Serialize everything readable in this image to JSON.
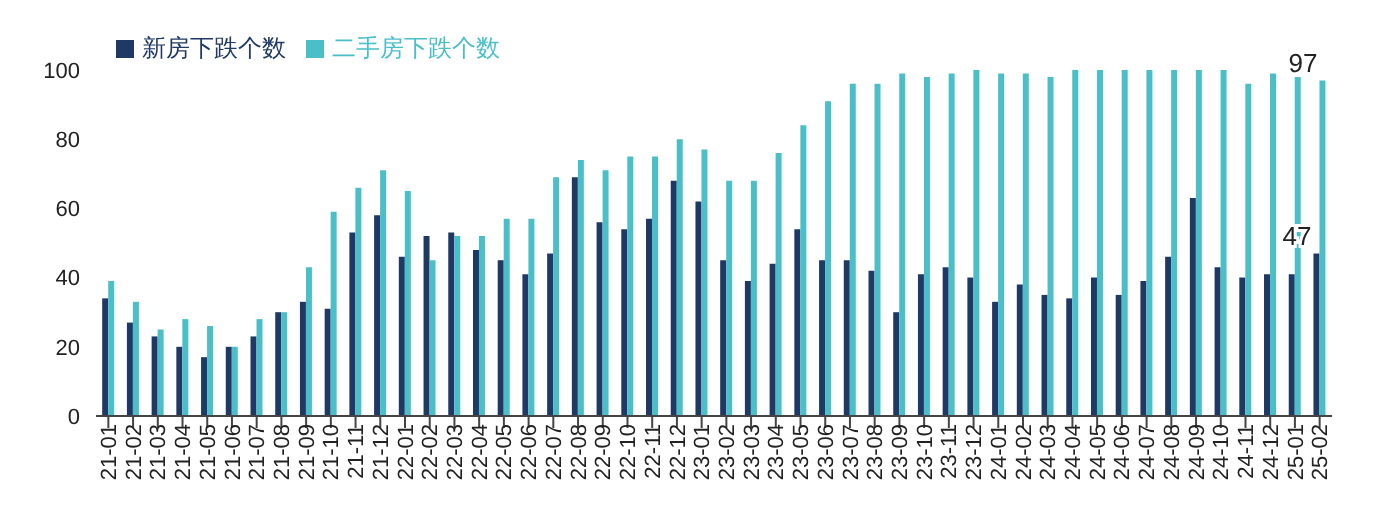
{
  "chart_data": {
    "type": "bar",
    "categories": [
      "21-01",
      "21-02",
      "21-03",
      "21-04",
      "21-05",
      "21-06",
      "21-07",
      "21-08",
      "21-09",
      "21-10",
      "21-11",
      "21-12",
      "22-01",
      "22-02",
      "22-03",
      "22-04",
      "22-05",
      "22-06",
      "22-07",
      "22-08",
      "22-09",
      "22-10",
      "22-11",
      "22-12",
      "23-01",
      "23-02",
      "23-03",
      "23-04",
      "23-05",
      "23-06",
      "23-07",
      "23-08",
      "23-09",
      "23-10",
      "23-11",
      "23-12",
      "24-01",
      "24-02",
      "24-03",
      "24-04",
      "24-05",
      "24-06",
      "24-07",
      "24-08",
      "24-09",
      "24-10",
      "24-11",
      "24-12",
      "25-01",
      "25-02"
    ],
    "series": [
      {
        "name": "新房下跌个数",
        "color": "#1f3864",
        "values": [
          34,
          27,
          23,
          20,
          17,
          20,
          23,
          30,
          33,
          31,
          53,
          58,
          46,
          52,
          53,
          48,
          45,
          41,
          47,
          69,
          56,
          54,
          57,
          68,
          62,
          45,
          39,
          44,
          54,
          45,
          45,
          42,
          30,
          41,
          43,
          40,
          33,
          38,
          35,
          34,
          40,
          35,
          39,
          46,
          63,
          43,
          40,
          41,
          41,
          47
        ],
        "value_labels": [
          null,
          null,
          null,
          null,
          null,
          null,
          null,
          null,
          null,
          null,
          null,
          null,
          null,
          null,
          null,
          null,
          null,
          null,
          null,
          null,
          null,
          null,
          null,
          null,
          null,
          null,
          null,
          null,
          null,
          null,
          null,
          null,
          null,
          null,
          null,
          null,
          null,
          null,
          null,
          null,
          null,
          null,
          null,
          null,
          null,
          null,
          null,
          null,
          null,
          "47"
        ]
      },
      {
        "name": "二手房下跌个数",
        "color": "#4bbfc8",
        "values": [
          39,
          33,
          25,
          28,
          26,
          20,
          28,
          30,
          43,
          59,
          66,
          71,
          65,
          45,
          52,
          52,
          57,
          57,
          69,
          74,
          71,
          75,
          75,
          80,
          77,
          68,
          68,
          76,
          84,
          91,
          96,
          96,
          99,
          98,
          99,
          100,
          99,
          99,
          98,
          100,
          100,
          100,
          100,
          100,
          100,
          100,
          96,
          99,
          98,
          97
        ],
        "value_labels": [
          null,
          null,
          null,
          null,
          null,
          null,
          null,
          null,
          null,
          null,
          null,
          null,
          null,
          null,
          null,
          null,
          null,
          null,
          null,
          null,
          null,
          null,
          null,
          null,
          null,
          null,
          null,
          null,
          null,
          null,
          null,
          null,
          null,
          null,
          null,
          null,
          null,
          null,
          null,
          null,
          null,
          null,
          null,
          null,
          null,
          null,
          null,
          null,
          null,
          "97"
        ]
      }
    ],
    "ylim": [
      0,
      100
    ],
    "yticks": [
      0,
      20,
      40,
      60,
      80,
      100
    ],
    "grid": false,
    "legend": "top left"
  }
}
